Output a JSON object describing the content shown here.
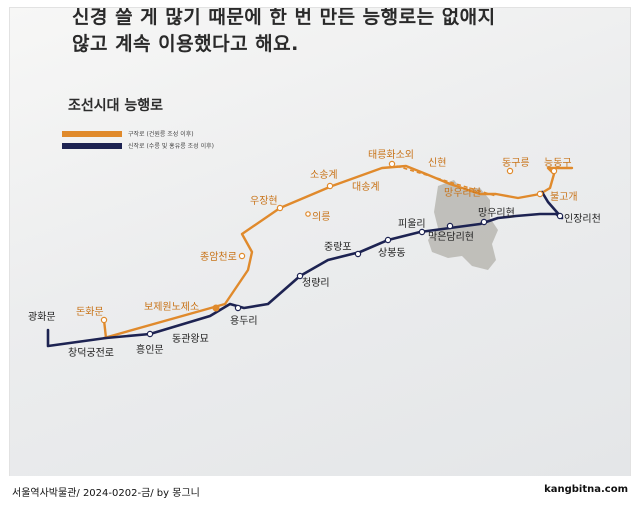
{
  "headline": {
    "line1": "신경 쓸 게 많기 때문에 한 번 만든 능행로는 없애지",
    "line2": "않고 계속 이용했다고 해요."
  },
  "map": {
    "title": "조선시대 능행로",
    "legend": [
      {
        "label": "구작로 (건원릉 조성 이후)",
        "color": "#e08a2c"
      },
      {
        "label": "신작로 (수릉 및 홍유릉 조성 이후)",
        "color": "#1d2352"
      }
    ],
    "stations": {
      "gwanghwamun": "광화문",
      "donhwamun": "돈화문",
      "changdeok": "창덕궁전로",
      "heunginmun": "흥인문",
      "donggwan": "동관왕묘",
      "bojewon": "보제원노제소",
      "yongduri": "용두리",
      "cheongnyangni": "청량리",
      "jungnangpo": "중랑포",
      "sangbong": "상봉동",
      "piulli": "피울리",
      "megeun": "막은담리현",
      "mangu_new": "망우리현",
      "injang": "인장리천",
      "jongam": "종암천로",
      "ujang": "우장현",
      "uireung": "의릉",
      "sosong": "소송계",
      "daesong": "대송계",
      "taereung": "태릉화소외",
      "sinhyeon": "신현",
      "mangu_old": "망우리현",
      "donggureung": "동구릉",
      "neunggu": "능동구",
      "bulgogae": "불고개"
    }
  },
  "footer": {
    "left": "서울역사박물관/ 2024-0202-금/  by 몽그니",
    "right": "kangbitna.com"
  }
}
